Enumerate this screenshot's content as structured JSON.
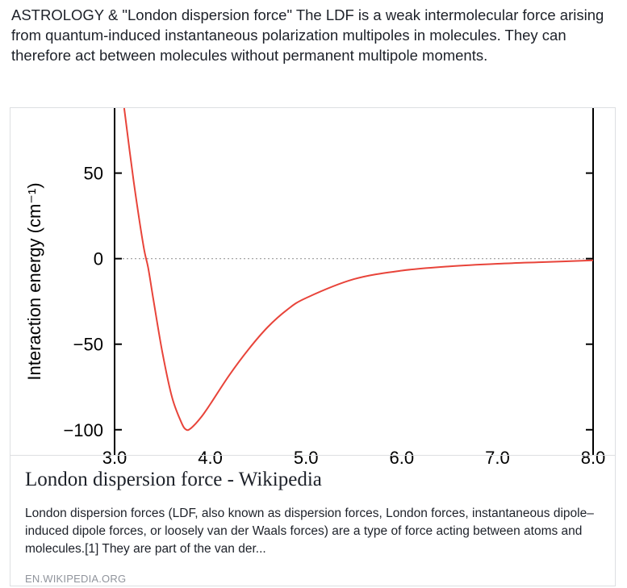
{
  "post": {
    "text": "ASTROLOGY & \"London dispersion force\" The LDF is a weak intermolecular force arising from quantum-induced instantaneous polarization multipoles in molecules. They can therefore act between molecules without permanent multipole moments."
  },
  "link_card": {
    "title": "London dispersion force - Wikipedia",
    "description": "London dispersion forces (LDF, also known as dispersion forces, London forces, instantaneous dipole–induced dipole forces, or loosely van der Waals forces) are a type of force acting between atoms and molecules.[1] They are part of the van der...",
    "domain": "EN.WIKIPEDIA.ORG"
  },
  "chart_data": {
    "type": "line",
    "ylabel": "Interaction energy (cm⁻¹)",
    "xlabel": "",
    "yticks": [
      "50",
      "0",
      "−50",
      "−100"
    ],
    "ytick_values": [
      50,
      0,
      -50,
      -100
    ],
    "xticks": [
      "3.0",
      "4.0",
      "5.0",
      "6.0",
      "7.0",
      "8.0"
    ],
    "xtick_values": [
      3.0,
      4.0,
      5.0,
      6.0,
      7.0,
      8.0
    ],
    "xlim": [
      3.0,
      8.0
    ],
    "ylim": [
      -110,
      88
    ],
    "zero_line": "dotted",
    "series": [
      {
        "color": "#e8443a",
        "x": [
          3.1,
          3.2,
          3.3,
          3.35,
          3.4,
          3.5,
          3.6,
          3.7,
          3.75,
          3.8,
          3.9,
          4.0,
          4.2,
          4.4,
          4.6,
          4.8,
          5.0,
          5.5,
          6.0,
          6.5,
          7.0,
          7.5,
          8.0
        ],
        "y": [
          88,
          45,
          8,
          -5,
          -22,
          -55,
          -81,
          -96,
          -100,
          -99,
          -93,
          -85,
          -68,
          -53,
          -40,
          -30,
          -23,
          -12,
          -7,
          -4.5,
          -3,
          -2,
          -1
        ]
      }
    ]
  }
}
